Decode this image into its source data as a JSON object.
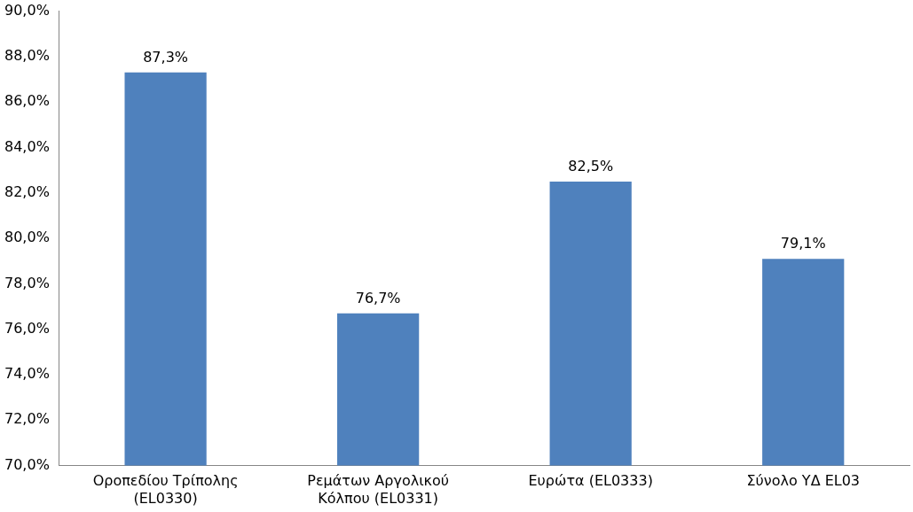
{
  "chart_data": {
    "type": "bar",
    "categories": [
      "Οροπεδίου Τρίπολης (EL0330)",
      "Ρεμάτων Αργολικού Κόλπου (EL0331)",
      "Ευρώτα (EL0333)",
      "Σύνολο ΥΔ EL03"
    ],
    "values": [
      87.3,
      76.7,
      82.5,
      79.1
    ],
    "value_labels": [
      "87,3%",
      "76,7%",
      "82,5%",
      "79,1%"
    ],
    "color": "#4f81bd",
    "ylim": [
      70,
      90
    ],
    "yticks": [
      {
        "value": 70,
        "label": "70,0%"
      },
      {
        "value": 72,
        "label": "72,0%"
      },
      {
        "value": 74,
        "label": "74,0%"
      },
      {
        "value": 76,
        "label": "76,0%"
      },
      {
        "value": 78,
        "label": "78,0%"
      },
      {
        "value": 80,
        "label": "80,0%"
      },
      {
        "value": 82,
        "label": "82,0%"
      },
      {
        "value": 84,
        "label": "84,0%"
      },
      {
        "value": 86,
        "label": "86,0%"
      },
      {
        "value": 88,
        "label": "88,0%"
      },
      {
        "value": 90,
        "label": "90,0%"
      }
    ],
    "grid": false,
    "legend": false
  }
}
